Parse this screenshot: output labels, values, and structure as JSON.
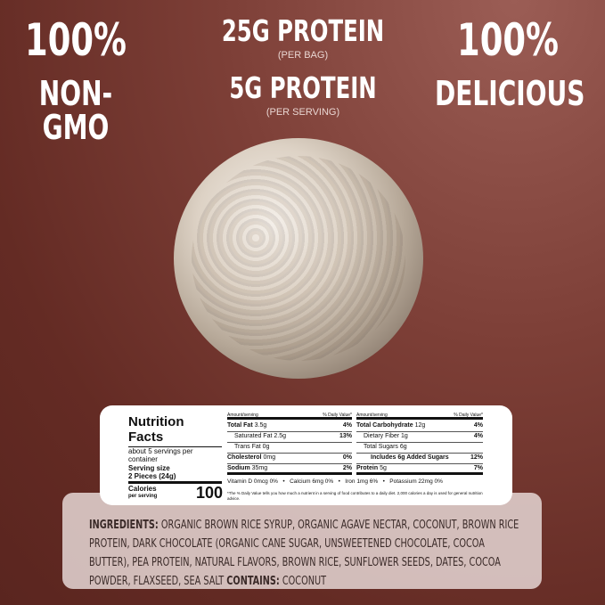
{
  "claims": {
    "left": {
      "line1": "100%",
      "line2": "NON-GMO"
    },
    "center": {
      "line1": "25G PROTEIN",
      "line1_sub": "(PER BAG)",
      "line2": "5G PROTEIN",
      "line2_sub": "(PER SERVING)"
    },
    "right": {
      "line1": "100%",
      "line2": "DELICIOUS"
    }
  },
  "nutrition": {
    "title1": "Nutrition",
    "title2": "Facts",
    "servings": "about 5 servings per container",
    "serving_size_label": "Serving size",
    "serving_size": "2 Pieces (24g)",
    "calories_label": "Calories",
    "calories_sub": "per serving",
    "calories": "100",
    "amount_header": "Amount/serving",
    "dv_header": "% Daily Value*",
    "left_rows": [
      {
        "name": "Total Fat",
        "amount": "3.5g",
        "dv": "4%"
      },
      {
        "name": "Saturated Fat",
        "amount": "2.5g",
        "dv": "13%"
      },
      {
        "name": "Trans Fat",
        "amount": "0g",
        "dv": ""
      },
      {
        "name": "Cholesterol",
        "amount": "0mg",
        "dv": "0%"
      },
      {
        "name": "Sodium",
        "amount": "35mg",
        "dv": "2%"
      }
    ],
    "right_rows": [
      {
        "name": "Total Carbohydrate",
        "amount": "12g",
        "dv": "4%"
      },
      {
        "name": "Dietary Fiber",
        "amount": "1g",
        "dv": "4%"
      },
      {
        "name": "Total Sugars",
        "amount": "6g",
        "dv": ""
      },
      {
        "name": "Includes 6g Added Sugars",
        "amount": "",
        "dv": "12%"
      },
      {
        "name": "Protein",
        "amount": "5g",
        "dv": "7%"
      }
    ],
    "vitamins": "Vitamin D 0mcg 0%   •   Calcium 6mg 0%   •   Iron 1mg 6%   •   Potassium 22mg 0%",
    "footnote": "*The % Daily Value tells you how much a nutrient in a serving of food contributes to a daily diet. 2,000 calories a day is used for general nutrition advice."
  },
  "ingredients": {
    "label": "INGREDIENTS:",
    "text": " Organic brown rice syrup, organic agave nectar, coconut, brown rice protein, dark chocolate (organic cane sugar, unsweetened chocolate, cocoa butter), pea protein, natural flavors, brown rice, sunflower seeds, dates, cocoa powder, flaxseed, sea salt ",
    "contains_label": "CONTAINS:",
    "contains": " COCONUT"
  }
}
